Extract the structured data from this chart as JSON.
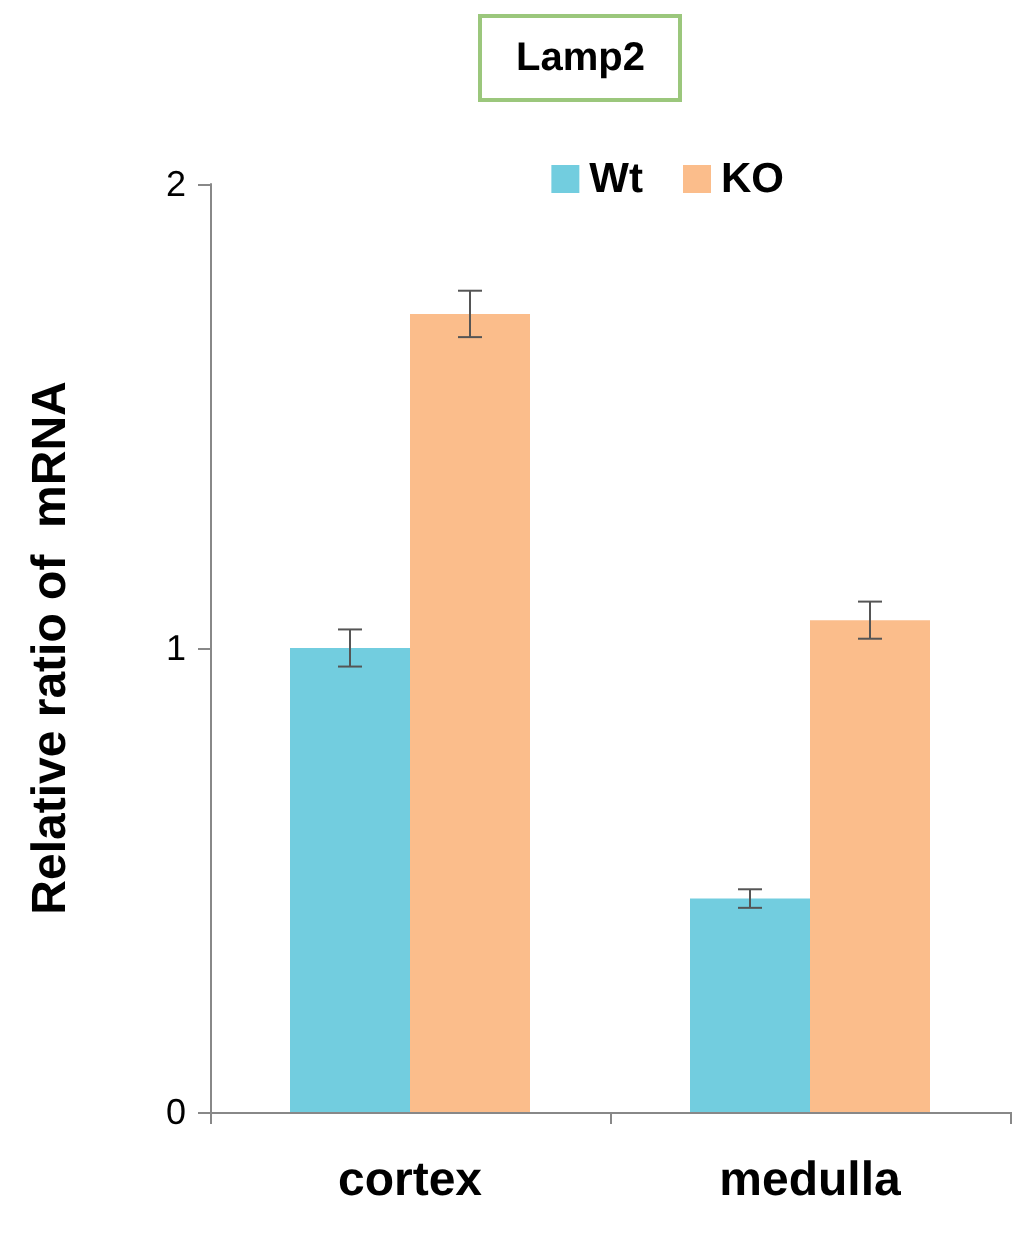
{
  "chart_data": {
    "type": "bar",
    "title": "Lamp2",
    "ylabel": "Relative ratio of  mRNA",
    "categories": [
      "cortex",
      "medulla"
    ],
    "series": [
      {
        "name": "Wt",
        "color": "#72cddf",
        "values": [
          1.0,
          0.46
        ],
        "errors": [
          0.04,
          0.02
        ]
      },
      {
        "name": "KO",
        "color": "#fbbd8b",
        "values": [
          1.72,
          1.06
        ],
        "errors": [
          0.05,
          0.04
        ]
      }
    ],
    "ylim": [
      0,
      2
    ],
    "yticks": [
      0,
      1,
      2
    ],
    "grid": false,
    "legend": "top right"
  }
}
